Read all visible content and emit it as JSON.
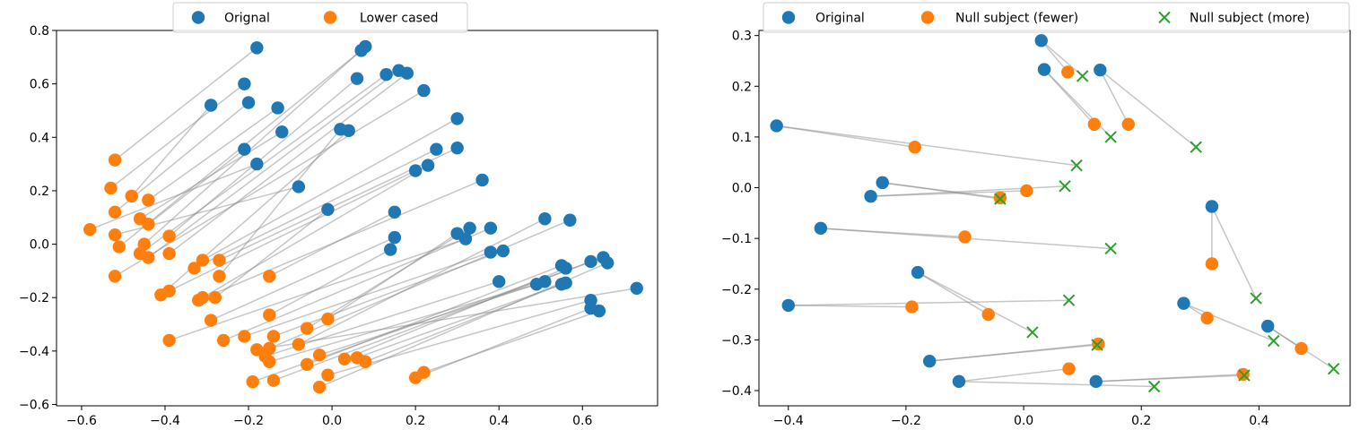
{
  "colors": {
    "blue": "#1f77b4",
    "orange": "#ff7f0e",
    "green": "#2ca02c",
    "line": "#808080"
  },
  "chart_data": [
    {
      "type": "scatter",
      "title": "",
      "xlabel": "",
      "ylabel": "",
      "xlim": [
        -0.66,
        0.78
      ],
      "ylim": [
        -0.605,
        0.8
      ],
      "xticks": [
        -0.6,
        -0.4,
        -0.2,
        0.0,
        0.2,
        0.4,
        0.6
      ],
      "xtick_labels": [
        "−0.6",
        "−0.4",
        "−0.2",
        "0.0",
        "0.2",
        "0.4",
        "0.6"
      ],
      "yticks": [
        -0.6,
        -0.4,
        -0.2,
        0.0,
        0.2,
        0.4,
        0.6,
        0.8
      ],
      "ytick_labels": [
        "−0.6",
        "−0.4",
        "−0.2",
        "0.0",
        "0.2",
        "0.4",
        "0.6",
        "0.8"
      ],
      "legend": {
        "position": "top-center",
        "entries": [
          "Orignal",
          "Lower cased"
        ]
      },
      "series": [
        {
          "name": "Orignal",
          "marker": "circle",
          "color": "blue",
          "points": [
            [
              -0.18,
              0.735
            ],
            [
              -0.21,
              0.6
            ],
            [
              -0.2,
              0.53
            ],
            [
              -0.29,
              0.52
            ],
            [
              -0.13,
              0.51
            ],
            [
              -0.12,
              0.42
            ],
            [
              -0.21,
              0.355
            ],
            [
              -0.18,
              0.3
            ],
            [
              -0.08,
              0.215
            ],
            [
              0.07,
              0.725
            ],
            [
              0.08,
              0.74
            ],
            [
              0.06,
              0.62
            ],
            [
              0.13,
              0.635
            ],
            [
              0.16,
              0.65
            ],
            [
              0.18,
              0.64
            ],
            [
              0.22,
              0.575
            ],
            [
              0.3,
              0.47
            ],
            [
              0.3,
              0.36
            ],
            [
              0.25,
              0.355
            ],
            [
              0.02,
              0.43
            ],
            [
              0.04,
              0.425
            ],
            [
              0.2,
              0.275
            ],
            [
              0.23,
              0.295
            ],
            [
              0.36,
              0.24
            ],
            [
              -0.01,
              0.13
            ],
            [
              0.15,
              0.12
            ],
            [
              0.15,
              0.025
            ],
            [
              0.14,
              -0.02
            ],
            [
              0.33,
              0.06
            ],
            [
              0.3,
              0.04
            ],
            [
              0.32,
              0.02
            ],
            [
              0.38,
              0.06
            ],
            [
              0.38,
              -0.03
            ],
            [
              0.41,
              -0.025
            ],
            [
              0.51,
              0.095
            ],
            [
              0.57,
              0.09
            ],
            [
              0.4,
              -0.14
            ],
            [
              0.49,
              -0.15
            ],
            [
              0.51,
              -0.14
            ],
            [
              0.55,
              -0.08
            ],
            [
              0.56,
              -0.09
            ],
            [
              0.56,
              -0.145
            ],
            [
              0.55,
              -0.15
            ],
            [
              0.62,
              -0.065
            ],
            [
              0.65,
              -0.05
            ],
            [
              0.66,
              -0.07
            ],
            [
              0.62,
              -0.21
            ],
            [
              0.62,
              -0.24
            ],
            [
              0.64,
              -0.25
            ],
            [
              0.73,
              -0.165
            ]
          ]
        },
        {
          "name": "Lower cased",
          "marker": "circle",
          "color": "orange",
          "points": [
            [
              -0.52,
              0.315
            ],
            [
              -0.53,
              0.21
            ],
            [
              -0.52,
              0.12
            ],
            [
              -0.48,
              0.18
            ],
            [
              -0.44,
              0.165
            ],
            [
              -0.46,
              0.095
            ],
            [
              -0.44,
              0.075
            ],
            [
              -0.58,
              0.055
            ],
            [
              -0.52,
              0.035
            ],
            [
              -0.51,
              -0.01
            ],
            [
              -0.45,
              0.0
            ],
            [
              -0.39,
              0.03
            ],
            [
              -0.46,
              -0.035
            ],
            [
              -0.44,
              -0.05
            ],
            [
              -0.39,
              -0.035
            ],
            [
              -0.52,
              -0.12
            ],
            [
              -0.31,
              -0.06
            ],
            [
              -0.27,
              -0.06
            ],
            [
              -0.33,
              -0.09
            ],
            [
              -0.27,
              -0.12
            ],
            [
              -0.41,
              -0.19
            ],
            [
              -0.39,
              -0.175
            ],
            [
              -0.31,
              -0.2
            ],
            [
              -0.32,
              -0.21
            ],
            [
              -0.28,
              -0.2
            ],
            [
              -0.15,
              -0.12
            ],
            [
              -0.29,
              -0.285
            ],
            [
              -0.15,
              -0.265
            ],
            [
              -0.06,
              -0.315
            ],
            [
              -0.01,
              -0.28
            ],
            [
              -0.39,
              -0.36
            ],
            [
              -0.26,
              -0.36
            ],
            [
              -0.21,
              -0.345
            ],
            [
              -0.14,
              -0.345
            ],
            [
              -0.08,
              -0.375
            ],
            [
              -0.15,
              -0.39
            ],
            [
              -0.16,
              -0.42
            ],
            [
              -0.15,
              -0.44
            ],
            [
              -0.03,
              -0.415
            ],
            [
              -0.06,
              -0.45
            ],
            [
              0.03,
              -0.43
            ],
            [
              0.06,
              -0.425
            ],
            [
              0.08,
              -0.44
            ],
            [
              -0.14,
              -0.51
            ],
            [
              -0.19,
              -0.515
            ],
            [
              -0.03,
              -0.535
            ],
            [
              -0.01,
              -0.49
            ],
            [
              0.2,
              -0.5
            ],
            [
              0.22,
              -0.48
            ],
            [
              -0.18,
              -0.395
            ]
          ]
        }
      ],
      "connectors": [
        [
          0,
          0
        ],
        [
          1,
          1
        ],
        [
          2,
          2
        ],
        [
          3,
          3
        ],
        [
          4,
          4
        ],
        [
          5,
          5
        ],
        [
          6,
          6
        ],
        [
          7,
          7
        ],
        [
          8,
          8
        ],
        [
          9,
          9
        ],
        [
          10,
          10
        ],
        [
          11,
          11
        ],
        [
          12,
          12
        ],
        [
          13,
          13
        ],
        [
          14,
          14
        ],
        [
          15,
          15
        ],
        [
          16,
          16
        ],
        [
          17,
          17
        ],
        [
          18,
          18
        ],
        [
          19,
          19
        ],
        [
          20,
          20
        ],
        [
          21,
          21
        ],
        [
          22,
          22
        ],
        [
          23,
          23
        ],
        [
          24,
          24
        ],
        [
          25,
          25
        ],
        [
          26,
          26
        ],
        [
          27,
          27
        ],
        [
          28,
          28
        ],
        [
          29,
          29
        ],
        [
          30,
          30
        ],
        [
          31,
          31
        ],
        [
          32,
          32
        ],
        [
          33,
          33
        ],
        [
          34,
          34
        ],
        [
          35,
          35
        ],
        [
          36,
          36
        ],
        [
          37,
          37
        ],
        [
          38,
          38
        ],
        [
          39,
          39
        ],
        [
          40,
          40
        ],
        [
          41,
          41
        ],
        [
          42,
          42
        ],
        [
          43,
          43
        ],
        [
          44,
          44
        ],
        [
          45,
          45
        ],
        [
          46,
          46
        ],
        [
          47,
          47
        ],
        [
          48,
          48
        ],
        [
          49,
          49
        ]
      ]
    },
    {
      "type": "scatter",
      "title": "",
      "xlabel": "",
      "ylabel": "",
      "xlim": [
        -0.45,
        0.555
      ],
      "ylim": [
        -0.43,
        0.31
      ],
      "xticks": [
        -0.4,
        -0.2,
        0.0,
        0.2,
        0.4
      ],
      "xtick_labels": [
        "−0.4",
        "−0.2",
        "0.0",
        "0.2",
        "0.4"
      ],
      "yticks": [
        -0.4,
        -0.3,
        -0.2,
        -0.1,
        0.0,
        0.1,
        0.2,
        0.3
      ],
      "ytick_labels": [
        "−0.4",
        "−0.3",
        "−0.2",
        "−0.1",
        "0.0",
        "0.1",
        "0.2",
        "0.3"
      ],
      "legend": {
        "position": "top-center",
        "entries": [
          "Original",
          "Null subject (fewer)",
          "Null subject (more)"
        ]
      },
      "series": [
        {
          "name": "Original",
          "marker": "circle",
          "color": "blue",
          "points": [
            [
              0.03,
              0.29
            ],
            [
              0.035,
              0.233
            ],
            [
              0.13,
              0.232
            ],
            [
              -0.42,
              0.122
            ],
            [
              -0.24,
              0.01
            ],
            [
              -0.26,
              -0.017
            ],
            [
              0.32,
              -0.037
            ],
            [
              -0.345,
              -0.08
            ],
            [
              -0.18,
              -0.167
            ],
            [
              -0.4,
              -0.232
            ],
            [
              0.272,
              -0.228
            ],
            [
              0.415,
              -0.273
            ],
            [
              -0.16,
              -0.342
            ],
            [
              -0.11,
              -0.382
            ],
            [
              0.123,
              -0.382
            ]
          ]
        },
        {
          "name": "Null subject (fewer)",
          "marker": "circle",
          "color": "orange",
          "points": [
            [
              0.075,
              0.228
            ],
            [
              0.12,
              0.125
            ],
            [
              0.178,
              0.125
            ],
            [
              -0.185,
              0.08
            ],
            [
              -0.04,
              -0.02
            ],
            [
              0.005,
              -0.006
            ],
            [
              0.32,
              -0.15
            ],
            [
              -0.1,
              -0.097
            ],
            [
              -0.06,
              -0.25
            ],
            [
              -0.19,
              -0.235
            ],
            [
              0.312,
              -0.257
            ],
            [
              0.472,
              -0.317
            ],
            [
              0.127,
              -0.308
            ],
            [
              0.077,
              -0.357
            ],
            [
              0.373,
              -0.368
            ]
          ]
        },
        {
          "name": "Null subject (more)",
          "marker": "x",
          "color": "green",
          "points": [
            [
              0.1,
              0.22
            ],
            [
              0.148,
              0.1
            ],
            [
              0.293,
              0.08
            ],
            [
              0.09,
              0.044
            ],
            [
              -0.04,
              -0.022
            ],
            [
              0.07,
              0.003
            ],
            [
              0.395,
              -0.218
            ],
            [
              0.148,
              -0.12
            ],
            [
              0.015,
              -0.285
            ],
            [
              0.077,
              -0.222
            ],
            [
              0.425,
              -0.302
            ],
            [
              0.527,
              -0.357
            ],
            [
              0.125,
              -0.31
            ],
            [
              0.222,
              -0.392
            ],
            [
              0.375,
              -0.37
            ]
          ]
        }
      ],
      "connectors": [
        [
          0,
          0
        ],
        [
          1,
          1
        ],
        [
          2,
          2
        ],
        [
          3,
          3
        ],
        [
          4,
          4
        ],
        [
          5,
          5
        ],
        [
          6,
          6
        ],
        [
          7,
          7
        ],
        [
          8,
          8
        ],
        [
          9,
          9
        ],
        [
          10,
          10
        ],
        [
          11,
          11
        ],
        [
          12,
          12
        ],
        [
          13,
          13
        ],
        [
          14,
          14
        ]
      ]
    }
  ]
}
